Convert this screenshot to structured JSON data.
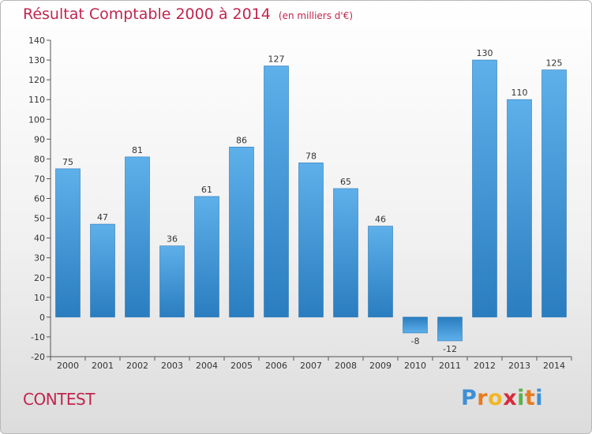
{
  "title": "Résultat Comptable 2000 à 2014",
  "unit": "(en milliers d'€)",
  "commune": "CONTEST",
  "logo": "Proxiti",
  "colors": {
    "bar": "#4fa3e0",
    "bar_dark": "#2b7cc0",
    "title": "#c0254f"
  },
  "chart_data": {
    "type": "bar",
    "categories": [
      "2000",
      "2001",
      "2002",
      "2003",
      "2004",
      "2005",
      "2006",
      "2007",
      "2008",
      "2009",
      "2010",
      "2011",
      "2012",
      "2013",
      "2014"
    ],
    "values": [
      75,
      47,
      81,
      36,
      61,
      86,
      127,
      78,
      65,
      46,
      -8,
      -12,
      130,
      110,
      125
    ],
    "ylim": [
      -20,
      140
    ],
    "yticks": [
      -20,
      -10,
      0,
      10,
      20,
      30,
      40,
      50,
      60,
      70,
      80,
      90,
      100,
      110,
      120,
      130,
      140
    ],
    "grid": false
  }
}
